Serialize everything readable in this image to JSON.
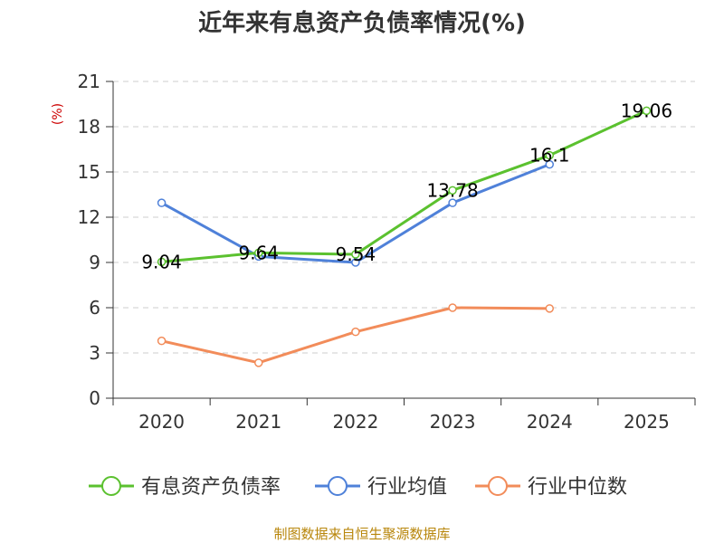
{
  "chart_data": {
    "type": "line",
    "title": "近年来有息资产负债率情况(%)",
    "unit_label": "(%)",
    "categories": [
      "2020",
      "2021",
      "2022",
      "2023",
      "2024",
      "2025"
    ],
    "ylim": [
      0,
      21
    ],
    "yticks": [
      "0",
      "3",
      "6",
      "9",
      "12",
      "15",
      "18",
      "21"
    ],
    "grid": true,
    "legend_position": "bottom",
    "series": [
      {
        "name": "有息资产负债率",
        "color": "#5bc12f",
        "values": [
          9.04,
          9.64,
          9.54,
          13.78,
          16.1,
          19.06
        ],
        "labels": [
          "9.04",
          "9.64",
          "9.54",
          "13.78",
          "16.1",
          "19.06"
        ]
      },
      {
        "name": "行业均值",
        "color": "#4f81d9",
        "values": [
          12.95,
          9.4,
          9.0,
          12.95,
          15.5,
          null
        ]
      },
      {
        "name": "行业中位数",
        "color": "#f28c5a",
        "values": [
          3.8,
          2.35,
          4.4,
          6.0,
          5.95,
          null
        ]
      }
    ],
    "source": "制图数据来自恒生聚源数据库"
  }
}
